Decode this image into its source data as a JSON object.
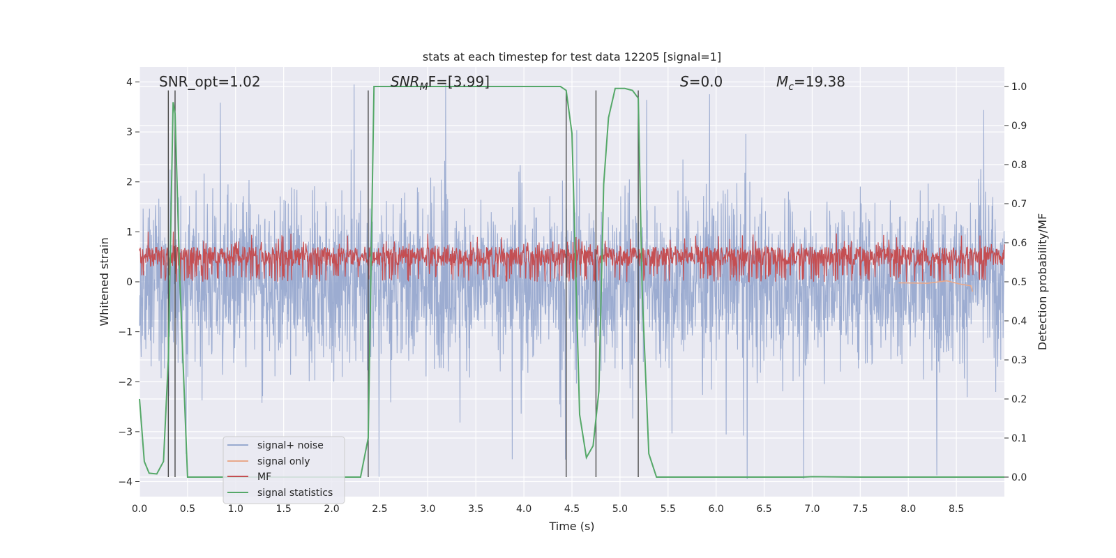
{
  "chart_data": {
    "type": "line",
    "title": "stats at each timestep for test data 12205 [signal=1]",
    "xlabel": "Time (s)",
    "ylabel_left": "Whitened strain",
    "ylabel_right": "Detection probability/MF",
    "xlim": [
      0.0,
      9.0
    ],
    "ylim_left": [
      -4.3,
      4.3
    ],
    "ylim_right": [
      -0.05,
      1.05
    ],
    "x_ticks": [
      "0.0",
      "0.5",
      "1.0",
      "1.5",
      "2.0",
      "2.5",
      "3.0",
      "3.5",
      "4.0",
      "4.5",
      "5.0",
      "5.5",
      "6.0",
      "6.5",
      "7.0",
      "7.5",
      "8.0",
      "8.5"
    ],
    "y_ticks_left": [
      "−4",
      "−3",
      "−2",
      "−1",
      "0",
      "1",
      "2",
      "3",
      "4"
    ],
    "y_ticks_right": [
      "0.0",
      "0.1",
      "0.2",
      "0.3",
      "0.4",
      "0.5",
      "0.6",
      "0.7",
      "0.8",
      "0.9",
      "1.0"
    ],
    "annotations": {
      "snr_opt": "SNR_opt=1.02",
      "snr_mf_main": "SNR",
      "snr_mf_sub": "M",
      "snr_mf_rest": "F=[3.99]",
      "s_main": "S",
      "s_rest": "=0.0",
      "mc_main": "M",
      "mc_sub": "c",
      "mc_rest": "=19.38"
    },
    "legend_placement": "lower-left",
    "grid": true,
    "series": [
      {
        "name": "signal+ noise",
        "color": "#98a9cf",
        "amplitude_approx": [
          -3.9,
          3.9
        ],
        "description_values": "noise oscillating roughly between -2 and 2 with spikes to ±3.9"
      },
      {
        "name": "signal only",
        "color": "#e8a88b",
        "x": [
          7.9,
          8.2,
          8.4,
          8.55,
          8.65,
          8.67
        ],
        "y": [
          -0.02,
          -0.03,
          0.02,
          -0.05,
          -0.08,
          -0.2
        ]
      },
      {
        "name": "MF",
        "color": "#c44e52",
        "y_range_right_axis": [
          0.5,
          0.63
        ]
      },
      {
        "name": "signal statistics",
        "color": "#55a868",
        "x": [
          0.0,
          0.05,
          0.1,
          0.18,
          0.25,
          0.3,
          0.35,
          0.37,
          0.42,
          0.5,
          0.6,
          1.0,
          1.5,
          2.0,
          2.3,
          2.38,
          2.44,
          2.5,
          3.0,
          3.5,
          4.0,
          4.38,
          4.44,
          4.5,
          4.58,
          4.65,
          4.72,
          4.78,
          4.83,
          4.88,
          4.95,
          5.05,
          5.13,
          5.19,
          5.23,
          5.3,
          5.38,
          6.0,
          6.5,
          6.9,
          7.0,
          7.5,
          8.0,
          8.5,
          9.0
        ],
        "y": [
          0.2,
          0.04,
          0.01,
          0.008,
          0.04,
          0.3,
          0.96,
          0.93,
          0.5,
          0.0,
          0.0,
          0.0,
          0.0,
          0.0,
          0.0,
          0.1,
          1.0,
          1.0,
          1.0,
          1.0,
          1.0,
          1.0,
          0.99,
          0.88,
          0.16,
          0.05,
          0.08,
          0.22,
          0.75,
          0.92,
          0.995,
          0.995,
          0.99,
          0.97,
          0.48,
          0.06,
          0.0,
          0.0,
          0.0,
          0.0,
          0.001,
          0.0,
          0.0,
          0.0,
          0.0
        ]
      }
    ],
    "vertical_lines_x": [
      0.3,
      0.37,
      2.38,
      4.44,
      4.75,
      5.19
    ]
  },
  "colors": {
    "plot_bg": "#eaeaf2",
    "grid": "#ffffff",
    "noise": "#98a9cf",
    "mf": "#c44e52",
    "stat": "#55a868",
    "signal_only": "#e8a88b",
    "vline": "#4a4a4a"
  }
}
